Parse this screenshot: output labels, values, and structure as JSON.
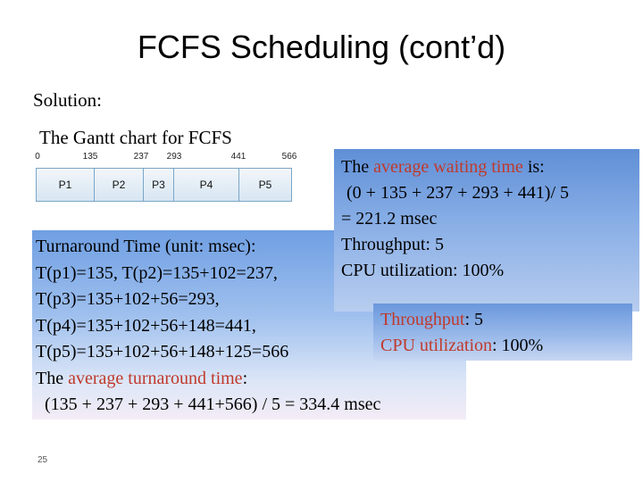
{
  "slide": {
    "title": "FCFS Scheduling (cont’d)",
    "solution_label": "Solution:",
    "gantt_caption": "The Gantt chart for FCFS",
    "page_number": "25"
  },
  "gantt": {
    "ticks": [
      "0",
      "135",
      "237",
      "293",
      "441",
      "566"
    ],
    "processes": [
      "P1",
      "P2",
      "P3",
      "P4",
      "P5"
    ]
  },
  "turnaround": {
    "heading": "Turnaround Time (unit: msec):",
    "line1": "T(p1)=135, T(p2)=135+102=237,",
    "line2": "T(p3)=135+102+56=293,",
    "line3": "T(p4)=135+102+56+148=441,",
    "line4": "T(p5)=135+102+56+148+125=566",
    "avg_prefix": "The ",
    "avg_highlight": "average turnaround time",
    "avg_suffix": ":",
    "avg_formula": "(135 + 237 + 293 + 441+566) / 5 = 334.4 msec"
  },
  "waiting": {
    "prefix": "The ",
    "highlight": "average waiting time",
    "suffix": " is:",
    "formula": "(0 + 135 + 237 + 293 + 441)/ 5",
    "result": "= 221.2 msec",
    "throughput": "Throughput: 5",
    "cpu_util": "CPU utilization: 100%"
  },
  "throughput_box": {
    "throughput_label": "Throughput",
    "throughput_value": ": 5",
    "cpu_label": "CPU utilization",
    "cpu_value": ": 100%"
  },
  "colors": {
    "highlight": "#c0392b",
    "gantt_border": "#7aa6c8",
    "box_blue": "#6f9fe3"
  }
}
